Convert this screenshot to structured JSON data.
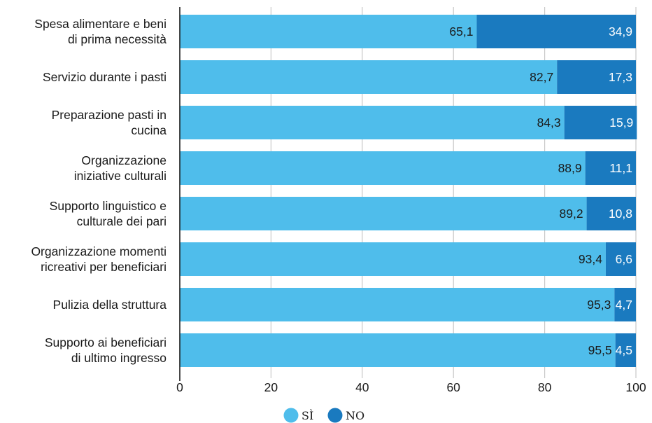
{
  "chart_data": {
    "type": "bar",
    "orientation": "horizontal",
    "stacked": true,
    "categories": [
      [
        "Spesa alimentare e beni",
        "di prima necessità"
      ],
      [
        "Servizio durante i pasti"
      ],
      [
        "Preparazione pasti in",
        "cucina"
      ],
      [
        "Organizzazione",
        "iniziative culturali"
      ],
      [
        "Supporto linguistico e",
        "culturale dei pari"
      ],
      [
        "Organizzazione momenti",
        "ricreativi per beneficiari"
      ],
      [
        "Pulizia della struttura"
      ],
      [
        "Supporto ai beneficiari",
        "di ultimo ingresso"
      ]
    ],
    "series": [
      {
        "name": "SÌ",
        "color": "#4fbdeb",
        "values": [
          65.1,
          82.7,
          84.3,
          88.9,
          89.2,
          93.4,
          95.3,
          95.5
        ],
        "labels": [
          "65,1",
          "82,7",
          "84,3",
          "88,9",
          "89,2",
          "93,4",
          "95,3",
          "95,5"
        ]
      },
      {
        "name": "NO",
        "color": "#1a7abf",
        "values": [
          34.9,
          17.3,
          15.9,
          11.1,
          10.8,
          6.6,
          4.7,
          4.5
        ],
        "labels": [
          "34,9",
          "17,3",
          "15,9",
          "11,1",
          "10,8",
          "6,6",
          "4,7",
          "4,5"
        ]
      }
    ],
    "xlim": [
      0,
      100
    ],
    "xticks": [
      0,
      20,
      40,
      60,
      80,
      100
    ],
    "xtick_labels": [
      "0",
      "20",
      "40",
      "60",
      "80",
      "100"
    ],
    "grid": true,
    "legend_position": "bottom-center"
  }
}
